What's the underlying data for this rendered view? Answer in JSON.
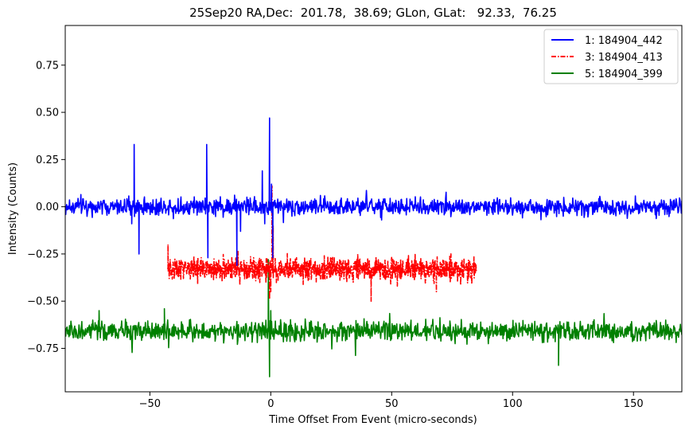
{
  "chart_data": {
    "type": "line",
    "title": "25Sep20 RA,Dec:  201.78,  38.69; GLon, GLat:   92.33,  76.25",
    "xlabel": "Time Offset From Event (micro-seconds)",
    "ylabel": "Intensity (Counts)",
    "xlim": [
      -85,
      170
    ],
    "ylim": [
      -0.98,
      0.96
    ],
    "x_ticks": [
      -50,
      0,
      50,
      100,
      150
    ],
    "x_tick_labels": [
      "−50",
      "0",
      "50",
      "100",
      "150"
    ],
    "y_ticks": [
      -0.75,
      -0.5,
      -0.25,
      0.0,
      0.25,
      0.5,
      0.75
    ],
    "y_tick_labels": [
      "−0.75",
      "−0.50",
      "−0.25",
      "0.00",
      "0.25",
      "0.50",
      "0.75"
    ],
    "grid": false,
    "legend_position": "top-right",
    "series": [
      {
        "name": "1: 184904_442",
        "color": "#0000ff",
        "linestyle": "solid",
        "x_range": [
          -85,
          170
        ],
        "baseline": 0.0,
        "noise_amplitude": 0.04,
        "spikes": [
          {
            "x": -56.5,
            "y": 0.33
          },
          {
            "x": -57.5,
            "y": -0.09
          },
          {
            "x": -54.5,
            "y": -0.25
          },
          {
            "x": -26.5,
            "y": 0.33
          },
          {
            "x": -26.0,
            "y": -0.27
          },
          {
            "x": -14.0,
            "y": -0.31
          },
          {
            "x": -12.5,
            "y": -0.13
          },
          {
            "x": -3.5,
            "y": 0.19
          },
          {
            "x": -2.5,
            "y": -0.09
          },
          {
            "x": -0.5,
            "y": 0.47
          },
          {
            "x": 0.3,
            "y": 0.12
          },
          {
            "x": 0.8,
            "y": -0.27
          }
        ]
      },
      {
        "name": "3: 184904_413",
        "color": "#ff0000",
        "linestyle": "dashdot",
        "x_range": [
          -42.5,
          85
        ],
        "baseline": -0.33,
        "noise_amplitude": 0.05,
        "spikes": [
          {
            "x": -42.5,
            "y": -0.2
          },
          {
            "x": -0.5,
            "y": -0.49
          },
          {
            "x": 0.0,
            "y": -0.45
          },
          {
            "x": 0.5,
            "y": 0.11
          },
          {
            "x": 1.0,
            "y": -0.1
          },
          {
            "x": 41.5,
            "y": -0.5
          },
          {
            "x": 68.5,
            "y": -0.45
          }
        ]
      },
      {
        "name": "5: 184904_399",
        "color": "#008000",
        "linestyle": "solid",
        "x_range": [
          -85,
          170
        ],
        "baseline": -0.66,
        "noise_amplitude": 0.045,
        "spikes": [
          {
            "x": -71,
            "y": -0.55
          },
          {
            "x": -44,
            "y": -0.54
          },
          {
            "x": -1.0,
            "y": -0.28
          },
          {
            "x": -0.5,
            "y": -0.9
          },
          {
            "x": 0.0,
            "y": -0.55
          },
          {
            "x": 119,
            "y": -0.84
          }
        ]
      }
    ]
  }
}
